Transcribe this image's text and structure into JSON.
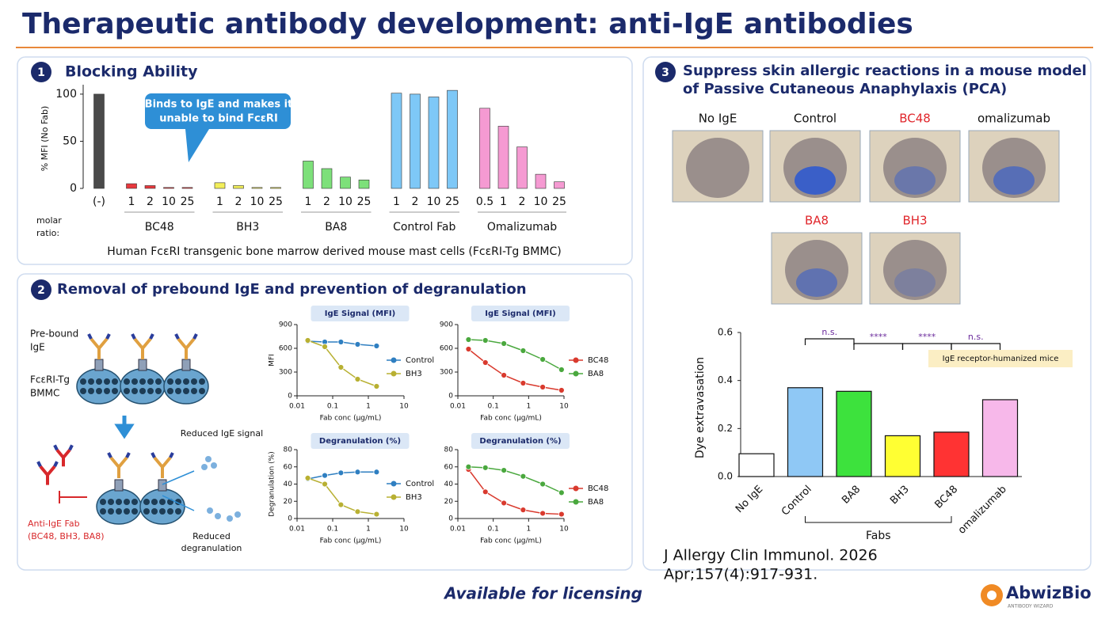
{
  "title": "Therapeutic antibody development: anti-IgE antibodies",
  "panels": [
    {
      "number": "1",
      "title": "Blocking Ability",
      "callout": [
        "Binds to IgE and makes it",
        "unable to bind FcεRI"
      ],
      "molar_ratio": [
        "molar",
        "ratio:"
      ],
      "caption": "Human FcεRI transgenic bone marrow derived mouse mast cells (FcεRI-Tg BMMC)"
    },
    {
      "number": "2",
      "title": "Removal of prebound IgE and prevention of degranulation",
      "diagram": {
        "prebound": [
          "Pre-bound",
          "IgE"
        ],
        "cells": [
          "FcεRI-Tg",
          "BMMC"
        ],
        "reduced_signal": "Reduced IgE signal",
        "reduced_degranulation": [
          "Reduced",
          "degranulation"
        ],
        "fab": [
          "Anti-IgE Fab",
          "(BC48, BH3, BA8)"
        ]
      }
    },
    {
      "number": "3",
      "title": [
        "Suppress skin allergic reactions in a mouse model",
        "of Passive Cutaneous Anaphylaxis (PCA)"
      ],
      "photos": [
        {
          "label": "No IgE",
          "color": "#111111"
        },
        {
          "label": "Control",
          "color": "#111111"
        },
        {
          "label": "BC48",
          "color": "#e0262b"
        },
        {
          "label": "omalizumab",
          "color": "#111111"
        },
        {
          "label": "BA8",
          "color": "#e0262b"
        },
        {
          "label": "BH3",
          "color": "#e0262b"
        }
      ],
      "citation": [
        "J Allergy Clin Immunol. 2026",
        "Apr;157(4):917-931."
      ]
    }
  ],
  "footer": {
    "licensing": "Available for licensing",
    "logo": "AbwizBio",
    "tagline": "ANTIBODY WIZARD"
  },
  "chart_data": [
    {
      "type": "bar",
      "ylabel": "% MFI (No Fab)",
      "ylim": [
        0,
        110
      ],
      "yticks": [
        0,
        50,
        100
      ],
      "series": [
        {
          "color": "#4a4a4a",
          "categories": [
            "(-)"
          ],
          "values": [
            100
          ]
        },
        {
          "name": "BC48",
          "color": "#e8383d",
          "categories": [
            "1",
            "2",
            "10",
            "25"
          ],
          "values": [
            5,
            3,
            1,
            1
          ]
        },
        {
          "name": "BH3",
          "color": "#f2ee5a",
          "categories": [
            "1",
            "2",
            "10",
            "25"
          ],
          "values": [
            6,
            3,
            1,
            1
          ]
        },
        {
          "name": "BA8",
          "color": "#7de07a",
          "categories": [
            "1",
            "2",
            "10",
            "25"
          ],
          "values": [
            29,
            21,
            12,
            9
          ]
        },
        {
          "name": "Control Fab",
          "color": "#7ec8f7",
          "categories": [
            "1",
            "2",
            "10",
            "25"
          ],
          "values": [
            101,
            100,
            97,
            104
          ]
        },
        {
          "name": "Omalizumab",
          "color": "#f59ad2",
          "categories": [
            "0.5",
            "1",
            "2",
            "10",
            "25"
          ],
          "values": [
            85,
            66,
            44,
            15,
            7
          ]
        }
      ]
    },
    {
      "type": "line",
      "title": "IgE Signal (MFI)",
      "xlabel": "Fab conc (μg/mL)",
      "ylabel": "MFI",
      "xlog": true,
      "xlim": [
        0.01,
        10
      ],
      "xticks": [
        0.01,
        0.1,
        1,
        10
      ],
      "ylim": [
        0,
        900
      ],
      "yticks": [
        0,
        300,
        600,
        900
      ],
      "series": [
        {
          "name": "Control",
          "color": "#2f7fc1",
          "x": [
            0.02,
            0.06,
            0.17,
            0.5,
            1.7
          ],
          "values": [
            690,
            680,
            680,
            650,
            630
          ]
        },
        {
          "name": "BH3",
          "color": "#b8b032",
          "x": [
            0.02,
            0.06,
            0.17,
            0.5,
            1.7
          ],
          "values": [
            700,
            620,
            360,
            210,
            120
          ]
        }
      ]
    },
    {
      "type": "line",
      "title": "IgE Signal (MFI)",
      "xlabel": "Fab conc (μg/mL)",
      "xlog": true,
      "xlim": [
        0.01,
        10
      ],
      "xticks": [
        0.01,
        0.1,
        1,
        10
      ],
      "ylim": [
        0,
        900
      ],
      "yticks": [
        0,
        300,
        600,
        900
      ],
      "series": [
        {
          "name": "BC48",
          "color": "#d93a2e",
          "x": [
            0.02,
            0.06,
            0.2,
            0.7,
            2.5,
            8.5
          ],
          "values": [
            590,
            420,
            260,
            160,
            110,
            70
          ]
        },
        {
          "name": "BA8",
          "color": "#4aa83e",
          "x": [
            0.02,
            0.06,
            0.2,
            0.7,
            2.5,
            8.5
          ],
          "values": [
            710,
            700,
            660,
            570,
            460,
            330
          ]
        }
      ]
    },
    {
      "type": "line",
      "title": "Degranulation (%)",
      "xlabel": "Fab conc (μg/mL)",
      "ylabel": "Degranulation (%)",
      "xlog": true,
      "xlim": [
        0.01,
        10
      ],
      "xticks": [
        0.01,
        0.1,
        1,
        10
      ],
      "ylim": [
        0,
        80
      ],
      "yticks": [
        0,
        20,
        40,
        60,
        80
      ],
      "series": [
        {
          "name": "Control",
          "color": "#2f7fc1",
          "x": [
            0.02,
            0.06,
            0.17,
            0.5,
            1.7
          ],
          "values": [
            46,
            50,
            53,
            54,
            54
          ]
        },
        {
          "name": "BH3",
          "color": "#b8b032",
          "x": [
            0.02,
            0.06,
            0.17,
            0.5,
            1.7
          ],
          "values": [
            47,
            40,
            16,
            8,
            5
          ]
        }
      ]
    },
    {
      "type": "line",
      "title": "Degranulation (%)",
      "xlabel": "Fab conc (μg/mL)",
      "xlog": true,
      "xlim": [
        0.01,
        10
      ],
      "xticks": [
        0.01,
        0.1,
        1,
        10
      ],
      "ylim": [
        0,
        80
      ],
      "yticks": [
        0,
        20,
        40,
        60,
        80
      ],
      "series": [
        {
          "name": "BC48",
          "color": "#d93a2e",
          "x": [
            0.02,
            0.06,
            0.2,
            0.7,
            2.5,
            8.5
          ],
          "values": [
            57,
            31,
            18,
            10,
            6,
            5
          ]
        },
        {
          "name": "BA8",
          "color": "#4aa83e",
          "x": [
            0.02,
            0.06,
            0.2,
            0.7,
            2.5,
            8.5
          ],
          "values": [
            60,
            59,
            56,
            49,
            40,
            30
          ]
        }
      ]
    },
    {
      "type": "bar",
      "ylabel": "Dye extravasation",
      "categories": [
        "No IgE",
        "Control",
        "BA8",
        "BH3",
        "BC48",
        "omalizumab"
      ],
      "values": [
        0.095,
        0.37,
        0.355,
        0.17,
        0.185,
        0.32
      ],
      "colors": [
        "#ffffff",
        "#8fc8f5",
        "#3de23d",
        "#ffff33",
        "#ff3333",
        "#f7b8ea"
      ],
      "ylim": [
        0,
        0.6
      ],
      "yticks": [
        {
          "value": 0,
          "label": "0.0"
        },
        0.2,
        0.4,
        0.6
      ],
      "significance": [
        "n.s.",
        "****",
        "****",
        "n.s."
      ],
      "group_label": "Fabs",
      "note": "IgE receptor-humanized mice"
    }
  ]
}
